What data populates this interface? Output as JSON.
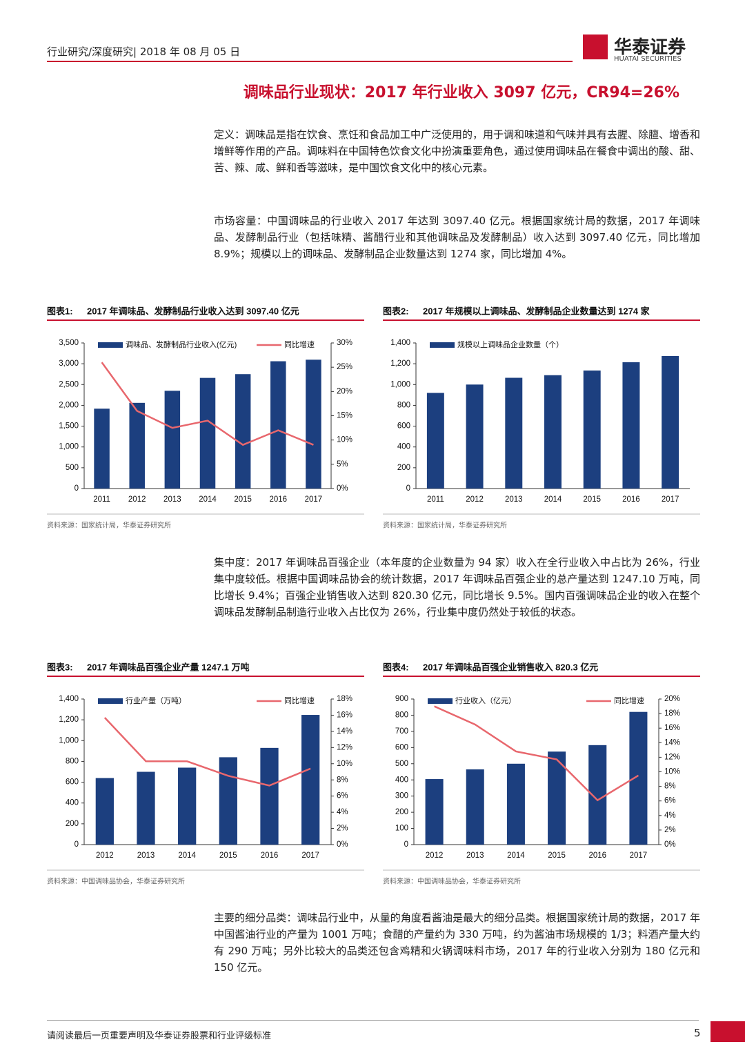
{
  "header": {
    "text": "行业研究/深度研究| 2018 年 08 月 05 日",
    "logo": "华泰证券",
    "logo_en": "HUATAI SECURITIES"
  },
  "section_title": "调味品行业现状：2017 年行业收入 3097 亿元，CR94=26%",
  "paragraphs": [
    "定义：调味品是指在饮食、烹饪和食品加工中广泛使用的，用于调和味道和气味并具有去腥、除膻、增香和增鲜等作用的产品。调味料在中国特色饮食文化中扮演重要角色，通过使用调味品在餐食中调出的酸、甜、苦、辣、咸、鲜和香等滋味，是中国饮食文化中的核心元素。",
    "市场容量：中国调味品的行业收入 2017 年达到 3097.40 亿元。根据国家统计局的数据，2017 年调味品、发酵制品行业（包括味精、酱醋行业和其他调味品及发酵制品）收入达到 3097.40 亿元，同比增加 8.9%；规模以上的调味品、发酵制品企业数量达到 1274 家，同比增加 4%。",
    "集中度：2017 年调味品百强企业（本年度的企业数量为 94 家）收入在全行业收入中占比为 26%，行业集中度较低。根据中国调味品协会的统计数据，2017 年调味品百强企业的总产量达到 1247.10 万吨，同比增长 9.4%；百强企业销售收入达到 820.30 亿元，同比增长 9.5%。国内百强调味品企业的收入在整个调味品发酵制品制造行业收入占比仅为 26%，行业集中度仍然处于较低的状态。",
    "主要的细分品类：调味品行业中，从量的角度看酱油是最大的细分品类。根据国家统计局的数据，2017 年中国酱油行业的产量为 1001 万吨；食醋的产量约为 330 万吨，约为酱油市场规模的 1/3；料酒产量大约有 290 万吨；另外比较大的品类还包含鸡精和火锅调味料市场，2017 年的行业收入分别为 180 亿元和 150 亿元。"
  ],
  "chart_data": [
    {
      "type": "bar_line",
      "label": "图表1:",
      "title": "2017 年调味品、发酵制品行业收入达到 3097.40 亿元",
      "source": "资料来源：国家统计局，华泰证券研究所",
      "categories": [
        "2011",
        "2012",
        "2013",
        "2014",
        "2015",
        "2016",
        "2017"
      ],
      "series": [
        {
          "name": "调味品、发酵制品行业收入(亿元)",
          "color": "#1c3f7f",
          "values": [
            1920,
            2060,
            2350,
            2660,
            2750,
            3060,
            3097.4
          ]
        },
        {
          "name": "同比增速",
          "color": "#e8676d",
          "axis": "y2",
          "values": [
            26,
            16,
            12.5,
            14,
            9,
            12,
            9
          ]
        }
      ],
      "ylim": [
        0,
        3500
      ],
      "yticks": [
        0,
        500,
        {
          "value": 1000,
          "label": "1,000"
        },
        {
          "value": 1500,
          "label": "1,500"
        },
        {
          "value": 2000,
          "label": "2,000"
        },
        {
          "value": 2500,
          "label": "2,500"
        },
        {
          "value": 3000,
          "label": "3,000"
        },
        {
          "value": 3500,
          "label": "3,500"
        }
      ],
      "y2lim": [
        0,
        30
      ],
      "y2ticks": [
        {
          "value": 0,
          "label": "0%"
        },
        {
          "value": 5,
          "label": "5%"
        },
        {
          "value": 10,
          "label": "10%"
        },
        {
          "value": 15,
          "label": "15%"
        },
        {
          "value": 20,
          "label": "20%"
        },
        {
          "value": 25,
          "label": "25%"
        },
        {
          "value": 30,
          "label": "30%"
        }
      ]
    },
    {
      "type": "bar",
      "label": "图表2:",
      "title": "2017 年规模以上调味品、发酵制品企业数量达到 1274 家",
      "source": "资料来源：国家统计局，华泰证券研究所",
      "categories": [
        "2011",
        "2012",
        "2013",
        "2014",
        "2015",
        "2016",
        "2017"
      ],
      "series": [
        {
          "name": "规模以上调味品企业数量（个）",
          "color": "#1c3f7f",
          "values": [
            920,
            1000,
            1065,
            1090,
            1135,
            1215,
            1274
          ]
        }
      ],
      "ylim": [
        0,
        1400
      ],
      "yticks": [
        0,
        200,
        400,
        600,
        800,
        {
          "value": 1000,
          "label": "1,000"
        },
        {
          "value": 1200,
          "label": "1,200"
        },
        {
          "value": 1400,
          "label": "1,400"
        }
      ]
    },
    {
      "type": "bar_line",
      "label": "图表3:",
      "title": "2017 年调味品百强企业产量 1247.1 万吨",
      "source": "资料来源：中国调味品协会，华泰证券研究所",
      "categories": [
        "2012",
        "2013",
        "2014",
        "2015",
        "2016",
        "2017"
      ],
      "series": [
        {
          "name": "行业产量（万吨）",
          "color": "#1c3f7f",
          "values": [
            640,
            700,
            740,
            840,
            930,
            1247.1
          ]
        },
        {
          "name": "同比增速",
          "color": "#e8676d",
          "axis": "y2",
          "values": [
            15.7,
            10.3,
            10.3,
            8.5,
            7.3,
            9.4
          ]
        }
      ],
      "ylim": [
        0,
        1400
      ],
      "yticks": [
        0,
        200,
        400,
        600,
        800,
        {
          "value": 1000,
          "label": "1,000"
        },
        {
          "value": 1200,
          "label": "1,200"
        },
        {
          "value": 1400,
          "label": "1,400"
        }
      ],
      "y2lim": [
        0,
        18
      ],
      "y2ticks": [
        {
          "value": 0,
          "label": "0%"
        },
        {
          "value": 2,
          "label": "2%"
        },
        {
          "value": 4,
          "label": "4%"
        },
        {
          "value": 6,
          "label": "6%"
        },
        {
          "value": 8,
          "label": "8%"
        },
        {
          "value": 10,
          "label": "10%"
        },
        {
          "value": 12,
          "label": "12%"
        },
        {
          "value": 14,
          "label": "14%"
        },
        {
          "value": 16,
          "label": "16%"
        },
        {
          "value": 18,
          "label": "18%"
        }
      ]
    },
    {
      "type": "bar_line",
      "label": "图表4:",
      "title": "2017 年调味品百强企业销售收入 820.3 亿元",
      "source": "资料来源：中国调味品协会，华泰证券研究所",
      "categories": [
        "2012",
        "2013",
        "2014",
        "2015",
        "2016",
        "2017"
      ],
      "series": [
        {
          "name": "行业收入（亿元）",
          "color": "#1c3f7f",
          "values": [
            405,
            465,
            500,
            575,
            615,
            820.3
          ]
        },
        {
          "name": "同比增速",
          "color": "#e8676d",
          "axis": "y2",
          "values": [
            19,
            16.5,
            12.8,
            11.7,
            6.1,
            9.5
          ]
        }
      ],
      "ylim": [
        0,
        900
      ],
      "yticks": [
        0,
        100,
        200,
        300,
        400,
        500,
        600,
        700,
        800,
        900
      ],
      "y2lim": [
        0,
        20
      ],
      "y2ticks": [
        {
          "value": 0,
          "label": "0%"
        },
        {
          "value": 2,
          "label": "2%"
        },
        {
          "value": 4,
          "label": "4%"
        },
        {
          "value": 6,
          "label": "6%"
        },
        {
          "value": 8,
          "label": "8%"
        },
        {
          "value": 10,
          "label": "10%"
        },
        {
          "value": 12,
          "label": "12%"
        },
        {
          "value": 14,
          "label": "14%"
        },
        {
          "value": 16,
          "label": "16%"
        },
        {
          "value": 18,
          "label": "18%"
        },
        {
          "value": 20,
          "label": "20%"
        }
      ]
    }
  ],
  "footer": {
    "text": "请阅读最后一页重要声明及华泰证券股票和行业评级标准",
    "page": "5"
  }
}
